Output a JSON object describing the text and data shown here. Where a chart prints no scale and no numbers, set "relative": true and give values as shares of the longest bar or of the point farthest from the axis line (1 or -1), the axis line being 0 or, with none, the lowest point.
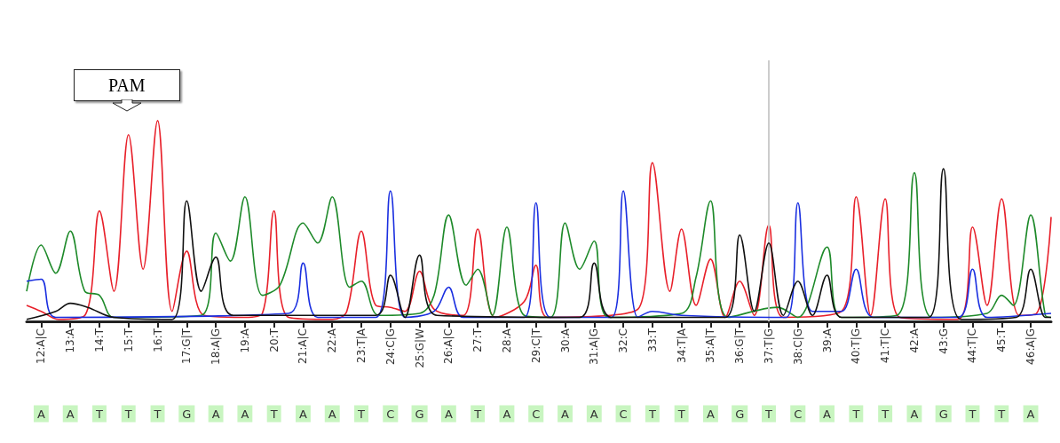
{
  "chart_data": {
    "type": "line",
    "relative": true,
    "xlim": [
      11.5,
      46.7
    ],
    "xticks": [
      {
        "value": 12,
        "label": "12:A|C"
      },
      {
        "value": 13,
        "label": "13:A"
      },
      {
        "value": 14,
        "label": "14:T"
      },
      {
        "value": 15,
        "label": "15:T"
      },
      {
        "value": 16,
        "label": "16:T"
      },
      {
        "value": 17,
        "label": "17:G|T"
      },
      {
        "value": 18,
        "label": "18:A|G"
      },
      {
        "value": 19,
        "label": "19:A"
      },
      {
        "value": 20,
        "label": "20:T"
      },
      {
        "value": 21,
        "label": "21:A|C"
      },
      {
        "value": 22,
        "label": "22:A"
      },
      {
        "value": 23,
        "label": "23:T|A"
      },
      {
        "value": 24,
        "label": "24:C|G"
      },
      {
        "value": 25,
        "label": "25:G|W"
      },
      {
        "value": 26,
        "label": "26:A|C"
      },
      {
        "value": 27,
        "label": "27:T"
      },
      {
        "value": 28,
        "label": "28:A"
      },
      {
        "value": 29,
        "label": "29:C|T"
      },
      {
        "value": 30,
        "label": "30:A"
      },
      {
        "value": 31,
        "label": "31:A|G"
      },
      {
        "value": 32,
        "label": "32:C"
      },
      {
        "value": 33,
        "label": "33:T"
      },
      {
        "value": 34,
        "label": "34:T|A"
      },
      {
        "value": 35,
        "label": "35:A|T"
      },
      {
        "value": 36,
        "label": "36:G|T"
      },
      {
        "value": 37,
        "label": "37:T|G"
      },
      {
        "value": 38,
        "label": "38:C|G"
      },
      {
        "value": 39,
        "label": "39:A"
      },
      {
        "value": 40,
        "label": "40:T|G"
      },
      {
        "value": 41,
        "label": "41:T|C"
      },
      {
        "value": 42,
        "label": "42:A"
      },
      {
        "value": 43,
        "label": "43:G"
      },
      {
        "value": 44,
        "label": "44:T|C"
      },
      {
        "value": 45,
        "label": "45:T"
      },
      {
        "value": 46,
        "label": "46:A|G"
      }
    ],
    "marker": "none",
    "line_style": "solid",
    "ref_lines": [
      {
        "axis": "x",
        "value": 37,
        "label": null,
        "color": "#cccccc"
      }
    ],
    "series": [
      {
        "color": "#e8202a",
        "x": [
          11.5,
          12,
          12.6,
          13.5,
          14,
          14.5,
          15,
          15.5,
          16,
          16.5,
          17,
          17.6,
          19,
          19.6,
          20,
          20.5,
          22,
          22.5,
          23,
          23.5,
          24,
          24.5,
          25,
          25.5,
          26.5,
          27,
          27.6,
          28.6,
          29,
          29.4,
          32.5,
          33,
          33.6,
          34,
          34.5,
          35,
          35.5,
          36,
          36.5,
          37,
          37.5,
          39.5,
          40,
          40.5,
          41,
          41.5,
          43.5,
          44,
          44.5,
          45,
          45.6,
          46.2,
          46.7
        ],
        "values": [
          0.08,
          0.05,
          0.01,
          0.03,
          0.55,
          0.15,
          0.93,
          0.26,
          1.0,
          0.05,
          0.35,
          0.03,
          0.02,
          0.04,
          0.55,
          0.02,
          0.01,
          0.05,
          0.45,
          0.08,
          0.07,
          0.05,
          0.25,
          0.06,
          0.03,
          0.46,
          0.02,
          0.1,
          0.28,
          0.02,
          0.06,
          0.79,
          0.15,
          0.46,
          0.08,
          0.31,
          0.02,
          0.2,
          0.03,
          0.48,
          0.02,
          0.05,
          0.62,
          0.03,
          0.61,
          0.02,
          0.01,
          0.47,
          0.08,
          0.61,
          0.03,
          0.04,
          0.52
        ]
      },
      {
        "color": "#1e8a2a",
        "x": [
          11.5,
          12,
          12.5,
          13,
          13.5,
          14,
          14.5,
          17.5,
          18,
          18.5,
          19,
          19.6,
          20.2,
          21,
          21.5,
          22,
          22.6,
          23,
          23.6,
          25,
          25.5,
          26,
          26.6,
          27,
          27.5,
          28,
          28.6,
          29.5,
          30,
          30.5,
          31,
          31.5,
          34,
          34.5,
          35,
          35.6,
          37.3,
          38,
          39,
          39.5,
          41.4,
          42,
          42.6,
          44.5,
          45,
          45.4,
          46,
          46.5,
          46.7
        ],
        "values": [
          0.15,
          0.38,
          0.24,
          0.45,
          0.15,
          0.13,
          0.02,
          0.03,
          0.44,
          0.3,
          0.62,
          0.13,
          0.18,
          0.49,
          0.39,
          0.62,
          0.17,
          0.2,
          0.03,
          0.04,
          0.13,
          0.53,
          0.18,
          0.26,
          0.03,
          0.47,
          0.03,
          0.02,
          0.49,
          0.26,
          0.4,
          0.02,
          0.04,
          0.22,
          0.6,
          0.02,
          0.07,
          0.02,
          0.37,
          0.02,
          0.03,
          0.74,
          0.02,
          0.04,
          0.13,
          0.08,
          0.53,
          0.03,
          0.02
        ]
      },
      {
        "color": "#1a2fe0",
        "x": [
          11.5,
          12,
          12.5,
          20.5,
          21,
          21.5,
          23.5,
          24,
          24.5,
          25.5,
          26,
          26.5,
          28.6,
          29,
          29.5,
          31.6,
          32,
          32.5,
          33,
          34,
          37.6,
          38,
          38.5,
          39.5,
          40,
          40.6,
          43.5,
          44,
          44.5,
          46.7
        ],
        "values": [
          0.2,
          0.21,
          0.02,
          0.04,
          0.29,
          0.02,
          0.02,
          0.65,
          0.02,
          0.05,
          0.17,
          0.02,
          0.02,
          0.59,
          0.02,
          0.02,
          0.65,
          0.02,
          0.05,
          0.03,
          0.02,
          0.59,
          0.05,
          0.05,
          0.26,
          0.02,
          0.02,
          0.26,
          0.02,
          0.04
        ]
      },
      {
        "color": "#111111",
        "x": [
          11.5,
          12.5,
          13,
          13.6,
          14.5,
          16.5,
          17,
          17.5,
          18,
          18.6,
          23.5,
          24,
          24.5,
          25,
          25.6,
          30.5,
          31,
          31.6,
          35.5,
          36,
          36.5,
          37,
          37.5,
          38,
          38.5,
          39,
          39.5,
          42.5,
          43,
          43.6,
          45.5,
          46,
          46.5,
          46.7
        ],
        "values": [
          0.01,
          0.05,
          0.09,
          0.07,
          0.02,
          0.01,
          0.6,
          0.15,
          0.32,
          0.03,
          0.03,
          0.23,
          0.02,
          0.33,
          0.03,
          0.02,
          0.29,
          0.02,
          0.02,
          0.43,
          0.05,
          0.39,
          0.03,
          0.2,
          0.03,
          0.23,
          0.02,
          0.02,
          0.76,
          0.01,
          0.02,
          0.26,
          0.02,
          0.02
        ]
      }
    ],
    "annotations": [
      "PAM",
      "A",
      "A",
      "T",
      "T",
      "T",
      "G",
      "A",
      "A",
      "T",
      "A",
      "A",
      "T",
      "C",
      "G",
      "A",
      "T",
      "A",
      "C",
      "A",
      "A",
      "C",
      "T",
      "T",
      "A",
      "G",
      "T",
      "C",
      "A",
      "T",
      "T",
      "A",
      "G",
      "T",
      "T",
      "A"
    ]
  }
}
